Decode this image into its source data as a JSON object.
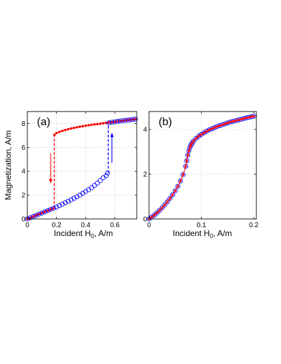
{
  "chart_data": [
    {
      "type": "scatter",
      "panel_label": "(a)",
      "xlabel": "Incident H",
      "xlabel_sub": "0",
      "xlabel_unit": ", A/m",
      "ylabel": "Magnetization, A/m",
      "xlim": [
        0,
        0.75
      ],
      "ylim": [
        0,
        9
      ],
      "xticks": [
        0,
        0.2,
        0.4,
        0.6
      ],
      "xtick_labels": [
        "0",
        "0.2",
        "0.4",
        "0.6"
      ],
      "yticks": [
        0,
        2,
        4,
        6,
        8
      ],
      "ytick_labels": [
        "0",
        "2",
        "4",
        "6",
        "8"
      ],
      "grid": true,
      "series": [
        {
          "marker": "filled-dot",
          "color": "#ff0000",
          "x": [
            0.0,
            0.02,
            0.04,
            0.06,
            0.08,
            0.1,
            0.12,
            0.14,
            0.16,
            0.18,
            0.185,
            0.2,
            0.22,
            0.24,
            0.26,
            0.28,
            0.3,
            0.32,
            0.34,
            0.36,
            0.38,
            0.4,
            0.42,
            0.44,
            0.46,
            0.48,
            0.5,
            0.52,
            0.54,
            0.56,
            0.58,
            0.6,
            0.62,
            0.64,
            0.66,
            0.68,
            0.7,
            0.72,
            0.74
          ],
          "y": [
            0.0,
            0.1,
            0.2,
            0.3,
            0.4,
            0.5,
            0.6,
            0.7,
            0.8,
            0.9,
            7.05,
            7.2,
            7.3,
            7.38,
            7.45,
            7.52,
            7.58,
            7.63,
            7.68,
            7.73,
            7.77,
            7.81,
            7.85,
            7.89,
            7.92,
            7.95,
            7.98,
            8.02,
            8.05,
            8.08,
            8.11,
            8.14,
            8.18,
            8.21,
            8.24,
            8.27,
            8.3,
            8.33,
            8.36
          ]
        },
        {
          "marker": "open-circle",
          "color": "#0000ff",
          "x": [
            0.0,
            0.02,
            0.04,
            0.06,
            0.08,
            0.1,
            0.12,
            0.14,
            0.16,
            0.18,
            0.2,
            0.22,
            0.24,
            0.26,
            0.28,
            0.3,
            0.32,
            0.34,
            0.36,
            0.38,
            0.4,
            0.42,
            0.44,
            0.46,
            0.48,
            0.5,
            0.52,
            0.54,
            0.55,
            0.56,
            0.58,
            0.6,
            0.62,
            0.64,
            0.66,
            0.68,
            0.7,
            0.72,
            0.74
          ],
          "y": [
            0.0,
            0.1,
            0.2,
            0.3,
            0.4,
            0.5,
            0.6,
            0.7,
            0.8,
            0.9,
            1.0,
            1.12,
            1.24,
            1.36,
            1.48,
            1.6,
            1.73,
            1.86,
            2.0,
            2.15,
            2.3,
            2.45,
            2.62,
            2.8,
            3.0,
            3.22,
            3.45,
            3.62,
            3.85,
            8.05,
            8.1,
            8.14,
            8.18,
            8.21,
            8.24,
            8.27,
            8.3,
            8.33,
            8.36
          ]
        }
      ],
      "jumps": [
        {
          "color": "#ff0000",
          "x": 0.185,
          "y_from": 0.9,
          "y_to": 7.05
        },
        {
          "color": "#0000ff",
          "x": 0.555,
          "y_from": 3.85,
          "y_to": 8.05
        }
      ],
      "arrows": [
        {
          "color": "#ff0000",
          "x": 0.16,
          "y_from": 5.5,
          "y_to": 3.0
        },
        {
          "color": "#0000ff",
          "x": 0.58,
          "y_from": 4.7,
          "y_to": 7.2
        }
      ]
    },
    {
      "type": "scatter",
      "panel_label": "(b)",
      "xlabel": "Incident H",
      "xlabel_sub": "0",
      "xlabel_unit": ", A/m",
      "ylabel": "",
      "xlim": [
        0,
        0.205
      ],
      "ylim": [
        0,
        4.8
      ],
      "xticks": [
        0,
        0.1,
        0.2
      ],
      "xtick_labels": [
        "0",
        "0.1",
        "0.2"
      ],
      "yticks": [
        0,
        2,
        4
      ],
      "ytick_labels": [
        "0",
        "2",
        "4"
      ],
      "grid": true,
      "series": [
        {
          "marker": "open-circle",
          "color": "#0000ff",
          "x": [
            0.0,
            0.005,
            0.01,
            0.015,
            0.02,
            0.025,
            0.03,
            0.035,
            0.04,
            0.045,
            0.05,
            0.055,
            0.06,
            0.065,
            0.07,
            0.072,
            0.074,
            0.076,
            0.078,
            0.08,
            0.082,
            0.085,
            0.09,
            0.095,
            0.1,
            0.105,
            0.11,
            0.115,
            0.12,
            0.125,
            0.13,
            0.135,
            0.14,
            0.145,
            0.15,
            0.155,
            0.16,
            0.165,
            0.17,
            0.175,
            0.18,
            0.185,
            0.19,
            0.195,
            0.2
          ],
          "y": [
            0.0,
            0.08,
            0.17,
            0.27,
            0.38,
            0.5,
            0.63,
            0.77,
            0.92,
            1.08,
            1.26,
            1.46,
            1.7,
            1.98,
            2.35,
            2.6,
            2.85,
            3.05,
            3.2,
            3.3,
            3.38,
            3.48,
            3.6,
            3.7,
            3.78,
            3.85,
            3.92,
            3.98,
            4.03,
            4.08,
            4.13,
            4.17,
            4.21,
            4.25,
            4.29,
            4.33,
            4.36,
            4.39,
            4.42,
            4.45,
            4.48,
            4.51,
            4.54,
            4.56,
            4.59
          ]
        },
        {
          "marker": "filled-dot",
          "color": "#ff0000",
          "x": [
            0.0,
            0.005,
            0.01,
            0.015,
            0.02,
            0.025,
            0.03,
            0.035,
            0.04,
            0.045,
            0.05,
            0.055,
            0.06,
            0.065,
            0.07,
            0.072,
            0.074,
            0.076,
            0.078,
            0.08,
            0.082,
            0.085,
            0.09,
            0.095,
            0.1,
            0.105,
            0.11,
            0.115,
            0.12,
            0.125,
            0.13,
            0.135,
            0.14,
            0.145,
            0.15,
            0.155,
            0.16,
            0.165,
            0.17,
            0.175,
            0.18,
            0.185,
            0.19,
            0.195,
            0.2
          ],
          "y": [
            0.0,
            0.08,
            0.17,
            0.27,
            0.38,
            0.5,
            0.63,
            0.77,
            0.92,
            1.08,
            1.26,
            1.46,
            1.7,
            1.98,
            2.35,
            2.6,
            2.85,
            3.05,
            3.2,
            3.3,
            3.38,
            3.48,
            3.6,
            3.7,
            3.78,
            3.85,
            3.92,
            3.98,
            4.03,
            4.08,
            4.13,
            4.17,
            4.21,
            4.25,
            4.29,
            4.33,
            4.36,
            4.39,
            4.42,
            4.45,
            4.48,
            4.51,
            4.54,
            4.56,
            4.59
          ]
        }
      ]
    }
  ]
}
